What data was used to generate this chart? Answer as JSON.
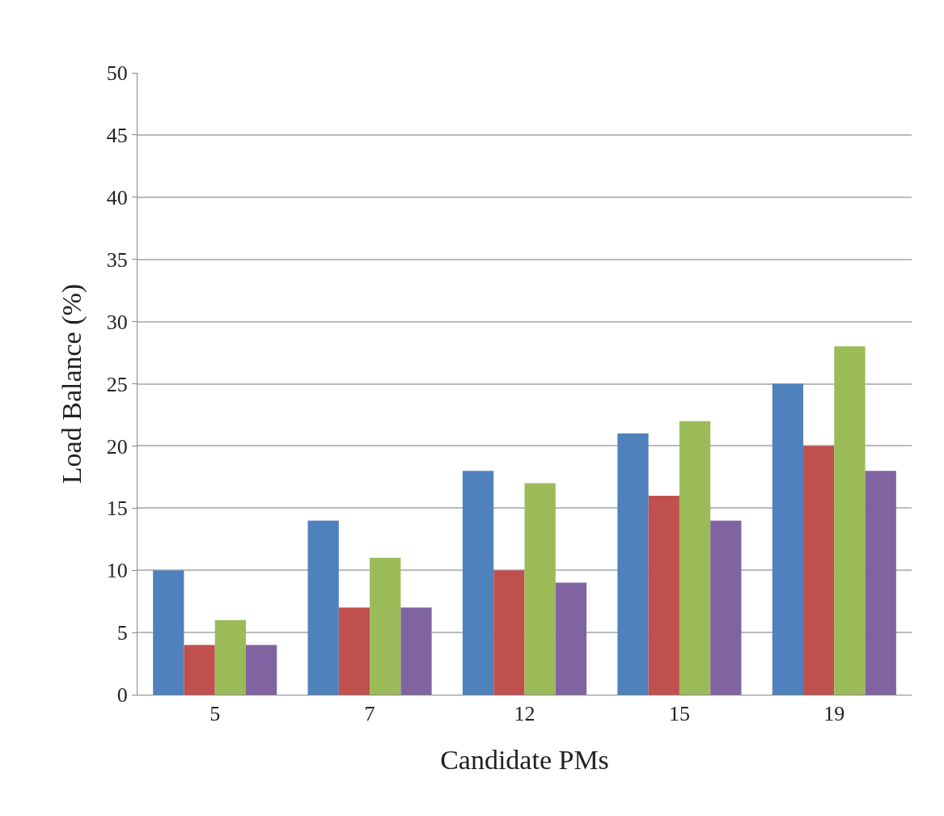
{
  "chart_data": {
    "type": "bar",
    "xlabel": "Candidate PMs",
    "ylabel": "Load Balance (%)",
    "categories": [
      "5",
      "7",
      "12",
      "15",
      "19"
    ],
    "series": [
      {
        "color": "#4f81bd",
        "values": [
          10,
          14,
          18,
          21,
          25
        ]
      },
      {
        "color": "#c0504d",
        "values": [
          4,
          7,
          10,
          16,
          20
        ]
      },
      {
        "color": "#9bbb59",
        "values": [
          6,
          11,
          17,
          22,
          28
        ]
      },
      {
        "color": "#8064a2",
        "values": [
          4,
          7,
          9,
          14,
          18
        ]
      }
    ],
    "ylim": [
      0,
      50
    ],
    "yticks": [
      0,
      5,
      10,
      15,
      20,
      25,
      30,
      35,
      40,
      45,
      50
    ],
    "grid": "y"
  }
}
